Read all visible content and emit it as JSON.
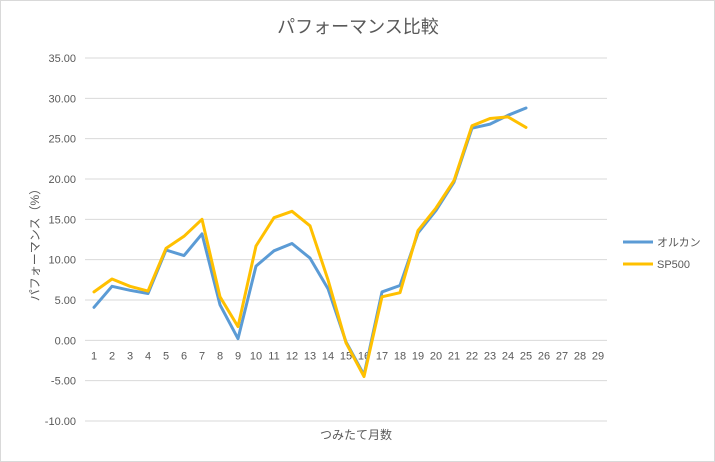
{
  "chart_data": {
    "type": "line",
    "title": "パフォーマンス比較",
    "xlabel": "つみたて月数",
    "ylabel": "パフォーマンス（%）",
    "ylim": [
      -10,
      35
    ],
    "y_ticks": [
      "35.00",
      "30.00",
      "25.00",
      "20.00",
      "15.00",
      "10.00",
      "5.00",
      "0.00",
      "-5.00",
      "-10.00"
    ],
    "categories": [
      "1",
      "2",
      "3",
      "4",
      "5",
      "6",
      "7",
      "8",
      "9",
      "10",
      "11",
      "12",
      "13",
      "14",
      "15",
      "16",
      "17",
      "18",
      "19",
      "20",
      "21",
      "22",
      "23",
      "24",
      "25",
      "26",
      "27",
      "28",
      "29"
    ],
    "grid": true,
    "legend_position": "right",
    "series": [
      {
        "name": "オルカン",
        "color": "#5b9bd5",
        "values": [
          4.1,
          6.7,
          6.2,
          5.8,
          11.2,
          10.5,
          13.2,
          4.4,
          0.2,
          9.2,
          11.1,
          12.0,
          10.2,
          6.4,
          -0.2,
          -4.3,
          6.0,
          6.8,
          13.3,
          16.1,
          19.6,
          26.3,
          26.8,
          27.9,
          28.8,
          null,
          null,
          null,
          null
        ]
      },
      {
        "name": "SP500",
        "color": "#ffc000",
        "values": [
          6.0,
          7.6,
          6.7,
          6.1,
          11.4,
          12.9,
          15.0,
          5.4,
          1.7,
          11.7,
          15.2,
          16.0,
          14.2,
          7.5,
          -0.3,
          -4.5,
          5.4,
          5.9,
          13.6,
          16.4,
          19.8,
          26.6,
          27.5,
          27.7,
          26.4,
          null,
          null,
          null,
          null
        ]
      }
    ]
  }
}
